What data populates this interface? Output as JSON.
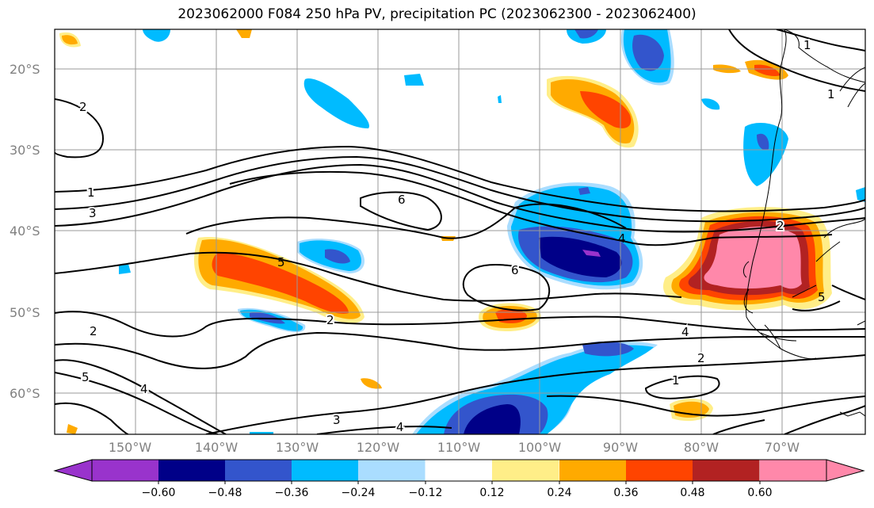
{
  "title": "2023062000 F084 250 hPa PV, precipitation PC (2023062300 - 2023062400)",
  "map": {
    "lat_labels": [
      "20°S",
      "30°S",
      "40°S",
      "50°S",
      "60°S"
    ],
    "lon_labels": [
      "150°W",
      "140°W",
      "130°W",
      "120°W",
      "110°W",
      "100°W",
      "90°W",
      "80°W",
      "70°W"
    ],
    "contour_labels": [
      "1",
      "3",
      "6",
      "5",
      "2",
      "6",
      "4",
      "2",
      "4",
      "2",
      "1",
      "3",
      "4",
      "5",
      "4",
      "2",
      "5",
      "1",
      "1",
      "2"
    ]
  },
  "colorbar": {
    "tick_labels": [
      "−0.60",
      "−0.48",
      "−0.36",
      "−0.24",
      "−0.12",
      "0.12",
      "0.24",
      "0.36",
      "0.48",
      "0.60"
    ],
    "colors": [
      "#9933cc",
      "#000088",
      "#3355cc",
      "#00bbff",
      "#aaddff",
      "#ffffff",
      "#ffee88",
      "#ffaa00",
      "#ff4400",
      "#b22222",
      "#ff88aa"
    ]
  }
}
